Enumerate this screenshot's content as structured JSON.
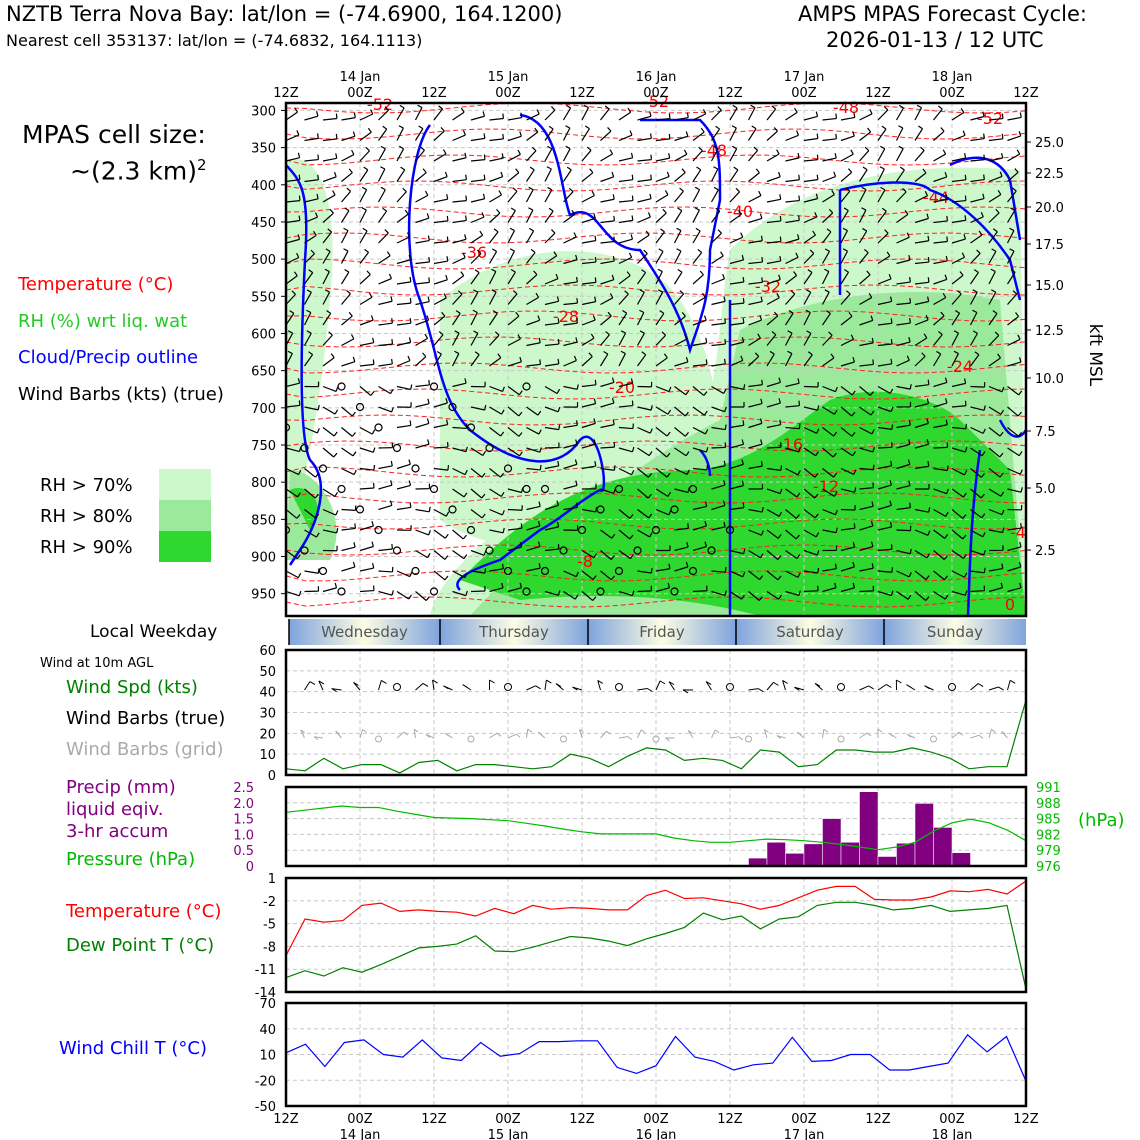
{
  "header": {
    "station_title": "NZTB Terra Nova Bay: lat/lon = (-74.6900, 164.1200)",
    "nearest_cell": "Nearest cell 353137: lat/lon = (-74.6832, 164.1113)",
    "forecast_title": "AMPS MPAS Forecast Cycle:",
    "forecast_cycle": "2026-01-13 / 12 UTC"
  },
  "left_panel": {
    "cell_size_label": "MPAS cell size:",
    "cell_size_value": "~(2.3 km)",
    "cell_size_exp": "2",
    "legend": [
      {
        "label": "Temperature (°C)",
        "color": "#ff0000"
      },
      {
        "label": "RH (%) wrt liq. wat",
        "color": "#22cc22"
      },
      {
        "label": "Cloud/Precip outline",
        "color": "#0000ff"
      },
      {
        "label": "Wind Barbs (kts) (true)",
        "color": "#000000"
      }
    ],
    "rh_legend": [
      {
        "label": "RH > 70%",
        "color": "#ccf8cc"
      },
      {
        "label": "RH > 80%",
        "color": "#9bea9b"
      },
      {
        "label": "RH > 90%",
        "color": "#2ed82e"
      }
    ],
    "local_weekday_label": "Local Weekday",
    "wind_10m_label": "Wind at 10m AGL",
    "wind_panel_labels": [
      {
        "label": "Wind Spd (kts)",
        "color": "#008000"
      },
      {
        "label": "Wind Barbs (true)",
        "color": "#000000"
      },
      {
        "label": "Wind Barbs (grid)",
        "color": "#aaaaaa"
      }
    ],
    "precip_labels": [
      {
        "label": "Precip (mm)",
        "color": "#800080"
      },
      {
        "label": "liquid eqiv.",
        "color": "#800080"
      },
      {
        "label": "3-hr accum",
        "color": "#800080"
      },
      {
        "label": "Pressure (hPa)",
        "color": "#00bb00"
      }
    ],
    "temp_labels": [
      {
        "label": "Temperature (°C)",
        "color": "#ff0000"
      },
      {
        "label": "Dew Point T (°C)",
        "color": "#008000"
      }
    ],
    "windchill_label": "Wind Chill T (°C)",
    "windchill_color": "#0000ff"
  },
  "time_axis": {
    "top_ticks": [
      {
        "line1": "",
        "line2": "12Z"
      },
      {
        "line1": "14 Jan",
        "line2": "00Z"
      },
      {
        "line1": "",
        "line2": "12Z"
      },
      {
        "line1": "15 Jan",
        "line2": "00Z"
      },
      {
        "line1": "",
        "line2": "12Z"
      },
      {
        "line1": "16 Jan",
        "line2": "00Z"
      },
      {
        "line1": "",
        "line2": "12Z"
      },
      {
        "line1": "17 Jan",
        "line2": "00Z"
      },
      {
        "line1": "",
        "line2": "12Z"
      },
      {
        "line1": "18 Jan",
        "line2": "00Z"
      },
      {
        "line1": "",
        "line2": "12Z"
      }
    ],
    "weekdays": [
      "Wednesday",
      "Thursday",
      "Friday",
      "Saturday",
      "Sunday"
    ],
    "weekday_colors": {
      "edge": "#7fa3dd",
      "center": "#fdfde2"
    }
  },
  "chart_data": [
    {
      "type": "heatmap",
      "name": "time-height cross section",
      "ylabel_right": "kft MSL",
      "pressure_ticks": [
        300,
        350,
        400,
        450,
        500,
        550,
        600,
        650,
        700,
        750,
        800,
        850,
        900,
        950
      ],
      "height_ticks": [
        "25.0",
        "22.5",
        "20.0",
        "17.5",
        "15.0",
        "12.5",
        "10.0",
        "7.5",
        "5.0",
        "2.5"
      ],
      "ylim_hpa": [
        290,
        980
      ],
      "temperature_labels": [
        "-52",
        "-52",
        "-48",
        "-48",
        "-52",
        "-44",
        "-40",
        "-36",
        "-32",
        "-28",
        "-24",
        "-20",
        "-16",
        "-12",
        "-8",
        "-4",
        "0"
      ]
    },
    {
      "type": "line",
      "name": "10m wind speed",
      "ylim": [
        0,
        60
      ],
      "yticks": [
        0,
        10,
        20,
        30,
        40,
        50,
        60
      ],
      "series": [
        {
          "color": "#008000",
          "values": [
            3,
            2,
            8,
            3,
            5,
            5,
            1,
            6,
            7,
            2,
            5,
            5,
            4,
            3,
            4,
            10,
            8,
            4,
            9,
            13,
            12,
            7,
            8,
            7,
            3,
            12,
            11,
            4,
            5,
            12,
            12,
            11,
            11,
            13,
            11,
            8,
            3,
            4,
            4,
            36
          ]
        }
      ]
    },
    {
      "type": "bar",
      "name": "precipitation and pressure",
      "ylim": [
        0,
        2.5
      ],
      "yticks": [
        "0",
        "0.5",
        "1.0",
        "1.5",
        "2.0",
        "2.5"
      ],
      "pressure_ticks": [
        "976",
        "979",
        "982",
        "985",
        "988",
        "991"
      ],
      "pressure_unit": "(hPa)",
      "series": [
        {
          "color": "#800080",
          "values": [
            0,
            0,
            0,
            0,
            0,
            0,
            0,
            0,
            0,
            0,
            0,
            0,
            0,
            0,
            0,
            0,
            0,
            0.02,
            0,
            0,
            0,
            0,
            0,
            0,
            0,
            0.25,
            0.75,
            0.4,
            0.7,
            1.5,
            0.75,
            2.35,
            0.3,
            0.72,
            1.98,
            1.22,
            0.42,
            0,
            0,
            0
          ]
        },
        {
          "color": "#00bb00",
          "values": [
            986.2,
            986.6,
            987.0,
            987.4,
            987.1,
            987.1,
            986.4,
            985.8,
            985.2,
            985.1,
            985.0,
            984.8,
            984.6,
            984.1,
            983.6,
            983.0,
            982.5,
            982.1,
            982.1,
            982.1,
            982.1,
            981.3,
            980.8,
            980.5,
            980.5,
            980.8,
            981.1,
            981.0,
            980.8,
            980.5,
            980.1,
            979.6,
            979.1,
            979.6,
            980.5,
            982.6,
            984.2,
            984.9,
            984.2,
            982.8,
            980.8
          ]
        }
      ]
    },
    {
      "type": "line",
      "name": "temperature and dew point",
      "ylim": [
        -14,
        1
      ],
      "yticks": [
        "1",
        "-2",
        "-5",
        "-8",
        "-11",
        "-14"
      ],
      "series": [
        {
          "color": "#ff0000",
          "values": [
            -9.2,
            -4.4,
            -4.8,
            -4.6,
            -2.6,
            -2.3,
            -3.4,
            -3.2,
            -3.4,
            -3.5,
            -4.0,
            -3.0,
            -3.7,
            -2.6,
            -3.1,
            -2.9,
            -3.0,
            -3.2,
            -3.2,
            -1.3,
            -0.6,
            -1.7,
            -1.6,
            -2.0,
            -2.4,
            -3.1,
            -2.6,
            -1.6,
            -0.6,
            -0.1,
            -0.1,
            -1.8,
            -1.9,
            -1.9,
            -1.5,
            -0.7,
            -0.8,
            -0.5,
            -1.1,
            0.6
          ]
        },
        {
          "color": "#008000",
          "values": [
            -12.1,
            -11.2,
            -11.9,
            -10.8,
            -11.4,
            -10.4,
            -9.3,
            -8.2,
            -8.0,
            -7.7,
            -6.6,
            -8.6,
            -8.7,
            -8.1,
            -7.4,
            -6.7,
            -6.9,
            -7.3,
            -7.9,
            -7.0,
            -6.3,
            -5.5,
            -3.6,
            -4.5,
            -4.0,
            -5.7,
            -4.4,
            -4.1,
            -2.6,
            -2.2,
            -2.2,
            -2.6,
            -3.2,
            -3.0,
            -2.6,
            -3.4,
            -3.2,
            -3.0,
            -2.6,
            -13.6
          ]
        }
      ]
    },
    {
      "type": "line",
      "name": "wind chill",
      "ylim": [
        -50,
        70
      ],
      "yticks": [
        "70",
        "40",
        "10",
        "-20",
        "-50"
      ],
      "series": [
        {
          "color": "#0000ff",
          "values": [
            12,
            22,
            -4,
            24,
            27,
            10,
            7,
            27,
            6,
            3,
            24,
            8,
            11,
            25,
            25,
            26,
            26,
            -5,
            -12,
            -3,
            31,
            7,
            2,
            -8,
            -2,
            0,
            30,
            2,
            3,
            10,
            10,
            -8,
            -8,
            -4,
            0,
            33,
            13,
            31,
            -21
          ]
        }
      ]
    }
  ]
}
